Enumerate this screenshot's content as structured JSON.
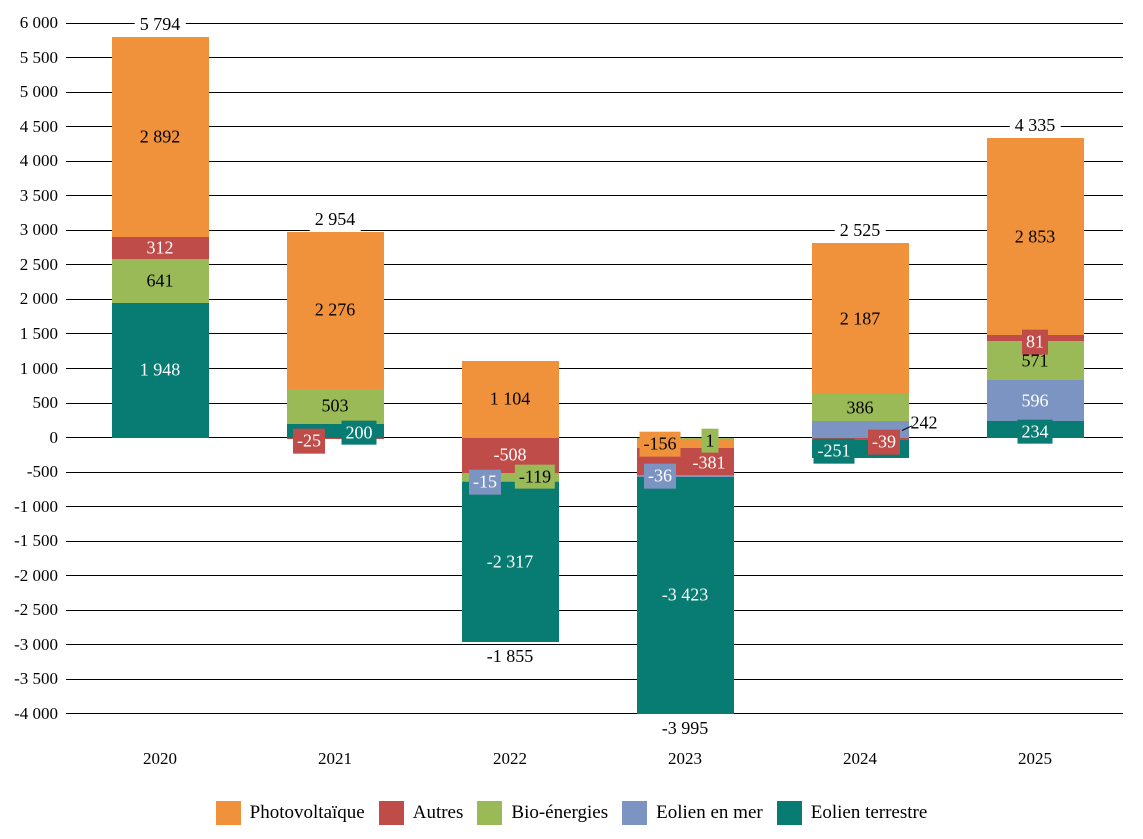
{
  "chart_data": {
    "type": "bar",
    "variant": "stacked-column-with-negatives",
    "grid": "horizontal",
    "legend_position": "bottom",
    "x_categories": [
      "2020",
      "2021",
      "2022",
      "2023",
      "2024",
      "2025"
    ],
    "y_axis": {
      "min": -4000,
      "max": 6000,
      "step": 500,
      "tick_values": [
        6000,
        5500,
        5000,
        4500,
        4000,
        3500,
        3000,
        2500,
        2000,
        1500,
        1000,
        500,
        0,
        -500,
        -1000,
        -1500,
        -2000,
        -2500,
        -3000,
        -3500,
        -4000
      ],
      "tick_labels": [
        "6 000",
        "5 500",
        "5 000",
        "4 500",
        "4 000",
        "3 500",
        "3 000",
        "2 500",
        "2 000",
        "1 500",
        "1 000",
        "500",
        "0",
        "-500",
        "-1 000",
        "-1 500",
        "-2 000",
        "-2 500",
        "-3 000",
        "-3 500",
        "-4 000"
      ]
    },
    "series_meta": [
      {
        "name": "Photovoltaïque",
        "color": "#F0913C",
        "label_color": "#000000"
      },
      {
        "name": "Autres",
        "color": "#BF4C48",
        "label_color": "#ffffff"
      },
      {
        "name": "Bio-énergies",
        "color": "#9ABA58",
        "label_color": "#000000"
      },
      {
        "name": "Eolien en mer",
        "color": "#7C94C1",
        "label_color": "#ffffff"
      },
      {
        "name": "Eolien terrestre",
        "color": "#087C72",
        "label_color": "#ffffff"
      }
    ],
    "series": [
      {
        "name": "Photovoltaïque",
        "values": [
          2892,
          2276,
          1104,
          -156,
          2187,
          2853
        ]
      },
      {
        "name": "Autres",
        "values": [
          312,
          -25,
          -508,
          -381,
          -39,
          81
        ]
      },
      {
        "name": "Bio-énergies",
        "values": [
          641,
          503,
          -119,
          1,
          386,
          571
        ]
      },
      {
        "name": "Eolien en mer",
        "values": [
          null,
          null,
          -15,
          -36,
          242,
          596
        ]
      },
      {
        "name": "Eolien terrestre",
        "values": [
          1948,
          200,
          -2317,
          -3423,
          -251,
          234
        ]
      }
    ],
    "totals": [
      5794,
      2954,
      -1855,
      -3995,
      2525,
      4335
    ],
    "columns": [
      {
        "year": "2020",
        "total": 5794,
        "total_label": "5 794",
        "total_side": "above",
        "segments": [
          {
            "series": 0,
            "value": 2892,
            "label": "2 892",
            "placement": "inside"
          },
          {
            "series": 1,
            "value": 312,
            "label": "312",
            "placement": "inside"
          },
          {
            "series": 2,
            "value": 641,
            "label": "641",
            "placement": "inside"
          },
          {
            "series": 4,
            "value": 1948,
            "label": "1 948",
            "placement": "inside"
          }
        ]
      },
      {
        "year": "2021",
        "total": 2954,
        "total_label": "2 954",
        "total_side": "above",
        "segments": [
          {
            "series": 0,
            "value": 2276,
            "label": "2 276",
            "placement": "inside"
          },
          {
            "series": 1,
            "value": -25,
            "label": "-25",
            "placement": "box",
            "dx": -26,
            "dy": 3
          },
          {
            "series": 2,
            "value": 503,
            "label": "503",
            "placement": "inside"
          },
          {
            "series": 4,
            "value": 200,
            "label": "200",
            "placement": "box",
            "dx": 24,
            "dy": 2
          }
        ]
      },
      {
        "year": "2022",
        "total": -1855,
        "total_label": "-1 855",
        "total_side": "below",
        "segments": [
          {
            "series": 0,
            "value": 1104,
            "label": "1 104",
            "placement": "inside"
          },
          {
            "series": 1,
            "value": -508,
            "label": "-508",
            "placement": "inside"
          },
          {
            "series": 2,
            "value": -119,
            "label": "-119",
            "placement": "box",
            "dx": 25,
            "dy": 0
          },
          {
            "series": 3,
            "value": -15,
            "label": "-15",
            "placement": "box",
            "dx": -25,
            "dy": 1
          },
          {
            "series": 4,
            "value": -2317,
            "label": "-2 317",
            "placement": "inside"
          }
        ]
      },
      {
        "year": "2023",
        "total": -3995,
        "total_label": "-3 995",
        "total_side": "below",
        "segments": [
          {
            "series": 0,
            "value": -156,
            "label": "-156",
            "placement": "box",
            "dx": -25,
            "dy": 1
          },
          {
            "series": 1,
            "value": -381,
            "label": "-381",
            "placement": "inside",
            "dx": 24,
            "dy": 1
          },
          {
            "series": 2,
            "value": 1,
            "label": "1",
            "placement": "box",
            "dx": 25,
            "dy": 3
          },
          {
            "series": 3,
            "value": -36,
            "label": "-36",
            "placement": "box",
            "dx": -25,
            "dy": 0
          },
          {
            "series": 4,
            "value": -3423,
            "label": "-3 423",
            "placement": "inside"
          }
        ]
      },
      {
        "year": "2024",
        "total": 2525,
        "total_label": "2 525",
        "total_side": "above",
        "segments": [
          {
            "series": 0,
            "value": 2187,
            "label": "2 187",
            "placement": "inside"
          },
          {
            "series": 1,
            "value": -39,
            "label": "-39",
            "placement": "box",
            "dx": 24,
            "dy": 3
          },
          {
            "series": 2,
            "value": 386,
            "label": "386",
            "placement": "inside"
          },
          {
            "series": 3,
            "value": 242,
            "label": "242",
            "placement": "leader",
            "dx": 64,
            "dy": -6
          },
          {
            "series": 4,
            "value": -251,
            "label": "-251",
            "placement": "box",
            "dx": -26,
            "dy": 2
          }
        ]
      },
      {
        "year": "2025",
        "total": 4335,
        "total_label": "4 335",
        "total_side": "above",
        "segments": [
          {
            "series": 0,
            "value": 2853,
            "label": "2 853",
            "placement": "inside"
          },
          {
            "series": 1,
            "value": 81,
            "label": "81",
            "placement": "box",
            "dx": 0,
            "dy": 4
          },
          {
            "series": 2,
            "value": 571,
            "label": "571",
            "placement": "inside"
          },
          {
            "series": 3,
            "value": 596,
            "label": "596",
            "placement": "inside"
          },
          {
            "series": 4,
            "value": 234,
            "label": "234",
            "placement": "box",
            "dx": 0,
            "dy": 2
          }
        ]
      }
    ],
    "legend_entries": [
      "Photovoltaïque",
      "Autres",
      "Bio-énergies",
      "Eolien en mer",
      "Eolien terrestre"
    ]
  }
}
